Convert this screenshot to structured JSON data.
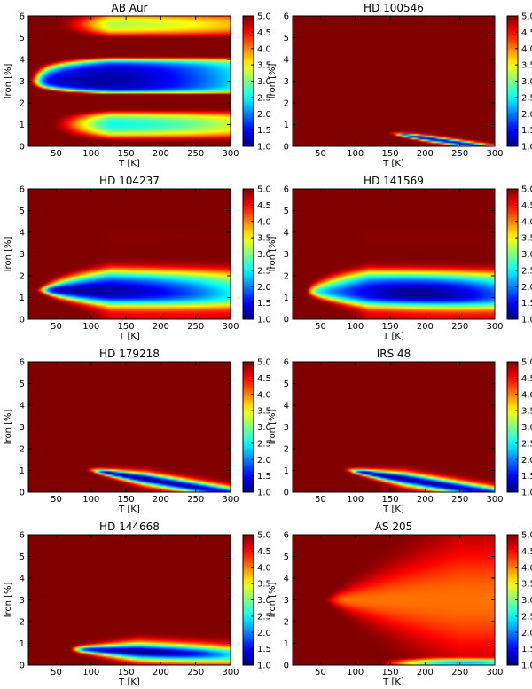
{
  "chart_data": [
    {
      "type": "heatmap",
      "title": "AB Aur",
      "xlabel": "T [K]",
      "ylabel": "Iron [%]",
      "xlim": [
        10,
        300
      ],
      "ylim": [
        0,
        6
      ],
      "xticks": [
        50,
        100,
        150,
        200,
        250,
        300
      ],
      "yticks": [
        0,
        1,
        2,
        3,
        4,
        5,
        6
      ],
      "colorbar": {
        "range": [
          1.0,
          5.0
        ],
        "ticks": [
          "1.0",
          "1.5",
          "2.0",
          "2.5",
          "3.0",
          "3.5",
          "4.0",
          "4.5",
          "5.0"
        ]
      },
      "valleys": [
        {
          "x0": 10,
          "slope": 0.0,
          "y0": 3.0,
          "vmin": 1.15,
          "a": 0.02,
          "b": 0.42,
          "w": 1.45,
          "f": 1.1,
          "xmin": 115,
          "rise": 1.2,
          "xrise": 300
        }
      ]
    },
    {
      "type": "heatmap",
      "title": "HD 100546",
      "xlabel": "T [K]",
      "ylabel": "Iron [%]",
      "xlim": [
        10,
        300
      ],
      "ylim": [
        0,
        6
      ],
      "xticks": [
        50,
        100,
        150,
        200,
        250,
        300
      ],
      "yticks": [
        0,
        1,
        2,
        3,
        4,
        5,
        6
      ],
      "colorbar": {
        "range": [
          1.0,
          5.0
        ],
        "ticks": [
          "1.0",
          "1.5",
          "2.0",
          "2.5",
          "3.0",
          "3.5",
          "4.0",
          "4.5",
          "5.0"
        ]
      },
      "valleys": [
        {
          "x0": 150,
          "slope": -0.0045,
          "y0": 0.6,
          "vmin": 1.2,
          "a": 0.4,
          "b": 0.55,
          "w": 0.12,
          "f": 0.0,
          "xmin": 195,
          "rise": 0.3,
          "xrise": 280
        }
      ]
    },
    {
      "type": "heatmap",
      "title": "HD 104237",
      "xlabel": "T [K]",
      "ylabel": "Iron [%]",
      "xlim": [
        10,
        300
      ],
      "ylim": [
        0,
        6
      ],
      "xticks": [
        50,
        100,
        150,
        200,
        250,
        300
      ],
      "yticks": [
        0,
        1,
        2,
        3,
        4,
        5,
        6
      ],
      "colorbar": {
        "range": [
          1.0,
          5.0
        ],
        "ticks": [
          "1.0",
          "1.5",
          "2.0",
          "2.5",
          "3.0",
          "3.5",
          "4.0",
          "4.5",
          "5.0"
        ]
      },
      "valleys": [
        {
          "x0": 20,
          "slope": -0.0006,
          "y0": 1.35,
          "vmin": 1.1,
          "a": 0.03,
          "b": 0.45,
          "w": 0.95,
          "f": 0.28,
          "xmin": 95,
          "rise": 1.4,
          "xrise": 300
        }
      ]
    },
    {
      "type": "heatmap",
      "title": "HD 141569",
      "xlabel": "T [K]",
      "ylabel": "Iron [%]",
      "xlim": [
        10,
        300
      ],
      "ylim": [
        0,
        6
      ],
      "xticks": [
        50,
        100,
        150,
        200,
        250,
        300
      ],
      "yticks": [
        0,
        1,
        2,
        3,
        4,
        5,
        6
      ],
      "colorbar": {
        "range": [
          1.0,
          5.0
        ],
        "ticks": [
          "1.0",
          "1.5",
          "2.0",
          "2.5",
          "3.0",
          "3.5",
          "4.0",
          "4.5",
          "5.0"
        ]
      },
      "valleys": [
        {
          "x0": 20,
          "slope": -0.0007,
          "y0": 1.3,
          "vmin": 1.05,
          "a": 0.02,
          "b": 0.5,
          "w": 0.95,
          "f": 0.32,
          "xmin": 190,
          "rise": 0.8,
          "xrise": 300
        }
      ]
    },
    {
      "type": "heatmap",
      "title": "HD 179218",
      "xlabel": "T [K]",
      "ylabel": "Iron [%]",
      "xlim": [
        10,
        300
      ],
      "ylim": [
        0,
        6
      ],
      "xticks": [
        50,
        100,
        150,
        200,
        250,
        300
      ],
      "yticks": [
        0,
        1,
        2,
        3,
        4,
        5,
        6
      ],
      "colorbar": {
        "range": [
          1.0,
          5.0
        ],
        "ticks": [
          "1.0",
          "1.5",
          "2.0",
          "2.5",
          "3.0",
          "3.5",
          "4.0",
          "4.5",
          "5.0"
        ]
      },
      "valleys": [
        {
          "x0": 95,
          "slope": -0.0053,
          "y0": 1.05,
          "vmin": 1.05,
          "a": 0.25,
          "b": 0.45,
          "w": 0.28,
          "f": 0.0,
          "xmin": 150,
          "rise": 0.35,
          "xrise": 290
        }
      ]
    },
    {
      "type": "heatmap",
      "title": "IRS 48",
      "xlabel": "T [K]",
      "ylabel": "Iron [%]",
      "xlim": [
        10,
        300
      ],
      "ylim": [
        0,
        6
      ],
      "xticks": [
        50,
        100,
        150,
        200,
        250,
        300
      ],
      "yticks": [
        0,
        1,
        2,
        3,
        4,
        5,
        6
      ],
      "colorbar": {
        "range": [
          1.0,
          5.0
        ],
        "ticks": [
          "1.0",
          "1.5",
          "2.0",
          "2.5",
          "3.0",
          "3.5",
          "4.0",
          "4.5",
          "5.0"
        ]
      },
      "valleys": [
        {
          "x0": 85,
          "slope": -0.0052,
          "y0": 1.05,
          "vmin": 1.05,
          "a": 0.22,
          "b": 0.45,
          "w": 0.3,
          "f": 0.0,
          "xmin": 140,
          "rise": 0.35,
          "xrise": 290
        }
      ]
    },
    {
      "type": "heatmap",
      "title": "HD 144668",
      "xlabel": "T [K]",
      "ylabel": "Iron [%]",
      "xlim": [
        10,
        300
      ],
      "ylim": [
        0,
        6
      ],
      "xticks": [
        50,
        100,
        150,
        200,
        250,
        300
      ],
      "yticks": [
        0,
        1,
        2,
        3,
        4,
        5,
        6
      ],
      "colorbar": {
        "range": [
          1.0,
          5.0
        ],
        "ticks": [
          "1.0",
          "1.5",
          "2.0",
          "2.5",
          "3.0",
          "3.5",
          "4.0",
          "4.5",
          "5.0"
        ]
      },
      "valleys": [
        {
          "x0": 65,
          "slope": -0.0012,
          "y0": 0.75,
          "vmin": 1.0,
          "a": 0.18,
          "b": 0.4,
          "w": 0.4,
          "f": 0.0,
          "xmin": 170,
          "rise": 1.4,
          "xrise": 300
        }
      ]
    },
    {
      "type": "heatmap",
      "title": "AS 205",
      "xlabel": "T [K]",
      "ylabel": "Iron [%]",
      "xlim": [
        10,
        300
      ],
      "ylim": [
        0,
        6
      ],
      "xticks": [
        50,
        100,
        150,
        200,
        250,
        300
      ],
      "yticks": [
        0,
        1,
        2,
        3,
        4,
        5,
        6
      ],
      "colorbar": {
        "range": [
          1.0,
          5.0
        ],
        "ticks": [
          "1.0",
          "1.5",
          "2.0",
          "2.5",
          "3.0",
          "3.5",
          "4.0",
          "4.5",
          "5.0"
        ]
      },
      "valleys": [
        {
          "x0": 55,
          "slope": 0.0,
          "y0": 3.0,
          "vmin": 4.05,
          "a": 0.02,
          "b": 0.25,
          "w": 2.6,
          "f": 0.0,
          "xmin": 270,
          "rise": 0.0,
          "xrise": 300
        },
        {
          "x0": 55,
          "slope": 0.0,
          "y0": 0.1,
          "vmin": 2.2,
          "a": 0.06,
          "b": 0.3,
          "w": 0.2,
          "f": 0.0,
          "xmin": 260,
          "rise": 0.3,
          "xrise": 300
        }
      ]
    }
  ]
}
